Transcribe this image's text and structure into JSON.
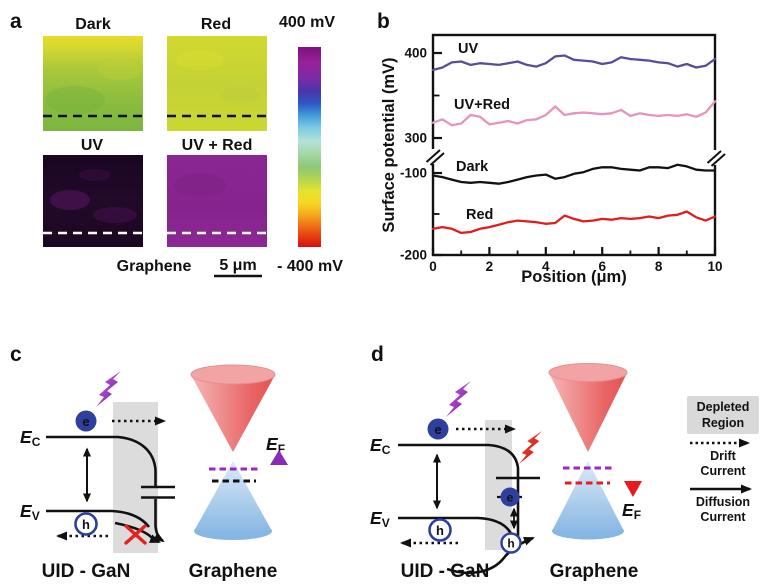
{
  "colors": {
    "uv_curve": "#5b4a9e",
    "uvred_curve": "#e693be",
    "dark_curve": "#121212",
    "red_curve": "#e11d1d",
    "fermi_up": "#8a2bb4",
    "fermi_down_red": "#e8191f",
    "fermi_dashed_purple": "#a026c0",
    "fermi_dashed_black": "#111111",
    "fermi_dashed_red": "#e8191f",
    "depleted_region_fill": "#dcdcdc",
    "cone_upper": "#ec6a6a",
    "cone_lower": "#8fbde4",
    "electron_circle": "#2e3f9f",
    "cross_red": "#e82020",
    "colorbar_top": "#7d127d",
    "colorbar_bottom": "#d80e0e",
    "map_dark": "#a8c93a",
    "map_red": "#ccd832",
    "map_uv": "#1c0722",
    "map_uvred": "#8c2694"
  },
  "panel_a": {
    "label": "a",
    "maps": [
      {
        "name": "Dark"
      },
      {
        "name": "Red"
      },
      {
        "name": "UV"
      },
      {
        "name": "UV + Red"
      }
    ],
    "colorbar": {
      "top": "400 mV",
      "bottom": "- 400 mV"
    },
    "scalebar": "5 μm",
    "substrate": "Graphene"
  },
  "panel_b": {
    "label": "b"
  },
  "chart_data": {
    "type": "line",
    "title": "",
    "xlabel": "Position (μm)",
    "ylabel": "Surface potential (mV)",
    "xlim": [
      0,
      10
    ],
    "y_axis_break": true,
    "upper_segment_ylim": [
      300,
      418
    ],
    "lower_segment_ylim": [
      -200,
      -100
    ],
    "grid": false,
    "xticks": [
      {
        "v": 0,
        "label": "0"
      },
      {
        "v": 2,
        "label": "2"
      },
      {
        "v": 4,
        "label": "4"
      },
      {
        "v": 6,
        "label": "6"
      },
      {
        "v": 8,
        "label": "8"
      },
      {
        "v": 10,
        "label": "10"
      }
    ],
    "xminor": [
      1,
      3,
      5,
      7,
      9
    ],
    "yticks": [
      {
        "v": 400,
        "label": "400"
      },
      {
        "v": 300,
        "label": "300"
      },
      {
        "v": -100,
        "label": "-100"
      },
      {
        "v": -200,
        "label": "-200"
      }
    ],
    "yminor": [
      350,
      -150
    ],
    "series": [
      {
        "name": "UV",
        "color": "#5b4a9e",
        "y": [
          380,
          383,
          389,
          390,
          386,
          388,
          387,
          386,
          388,
          390,
          386,
          384,
          388,
          396,
          397,
          392,
          391,
          390,
          387,
          389,
          395,
          393,
          392,
          391,
          389,
          388,
          384,
          387,
          383,
          385,
          393
        ]
      },
      {
        "name": "UV+Red",
        "color": "#e693be",
        "y": [
          318,
          322,
          315,
          317,
          327,
          325,
          316,
          318,
          320,
          317,
          321,
          322,
          327,
          337,
          327,
          329,
          330,
          329,
          328,
          329,
          333,
          326,
          329,
          327,
          326,
          327,
          326,
          328,
          325,
          330,
          343
        ]
      },
      {
        "name": "Dark",
        "color": "#121212",
        "y": [
          -103,
          -105,
          -108,
          -111,
          -112,
          -111,
          -112,
          -113,
          -111,
          -108,
          -105,
          -103,
          -102,
          -107,
          -105,
          -101,
          -99,
          -95,
          -93,
          -93,
          -95,
          -96,
          -97,
          -93,
          -93,
          -94,
          -90,
          -92,
          -96,
          -97,
          -97
        ]
      },
      {
        "name": "Red",
        "color": "#e11d1d",
        "y": [
          -168,
          -166,
          -168,
          -173,
          -172,
          -168,
          -166,
          -163,
          -160,
          -158,
          -159,
          -160,
          -162,
          -161,
          -152,
          -156,
          -159,
          -158,
          -156,
          -157,
          -155,
          -156,
          -155,
          -153,
          -155,
          -152,
          -151,
          -147,
          -154,
          -158,
          -153
        ]
      }
    ]
  },
  "panel_c": {
    "label": "c",
    "conduction_band": {
      "base": "E",
      "sub": "C"
    },
    "valence_band": {
      "base": "E",
      "sub": "V"
    },
    "fermi_level": {
      "base": "E",
      "sub": "F"
    },
    "electron": "e",
    "hole": "h",
    "material": "UID - GaN",
    "graphene": "Graphene"
  },
  "panel_d": {
    "label": "d",
    "conduction_band": {
      "base": "E",
      "sub": "C"
    },
    "valence_band": {
      "base": "E",
      "sub": "V"
    },
    "fermi_level": {
      "base": "E",
      "sub": "F"
    },
    "electron": "e",
    "electron_trapped": "e",
    "hole": "h",
    "hole_transferred": "h",
    "material": "UID - GaN",
    "graphene": "Graphene"
  },
  "legend": {
    "depleted_region": {
      "line1": "Depleted",
      "line2": "Region"
    },
    "drift_current": {
      "line1": "Drift",
      "line2": "Current"
    },
    "diffusion_current": {
      "line1": "Diffusion",
      "line2": "Current"
    }
  }
}
